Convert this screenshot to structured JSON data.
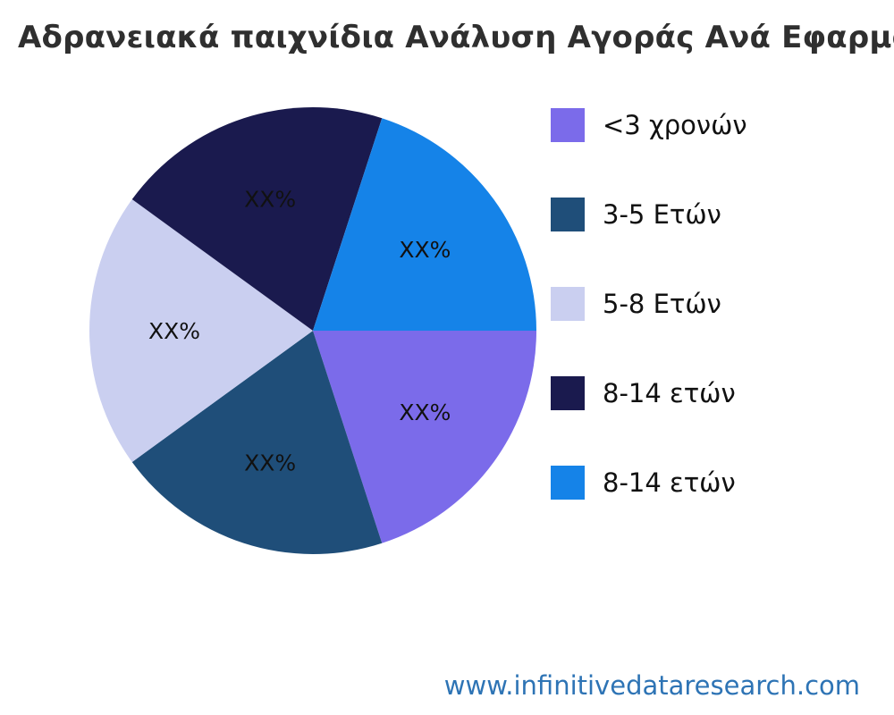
{
  "title": "Αδρανειακά παιχνίδια Ανάλυση Αγοράς Ανά Εφαρμογή",
  "footer": {
    "url": "www.infinitivedataresearch.com",
    "link_color": "#2e74b5"
  },
  "chart_data": {
    "type": "pie",
    "title": "Αδρανειακά παιχνίδια Ανάλυση Αγοράς Ανά Εφαρμογή",
    "legend_position": "right",
    "start_angle_deg": 0,
    "direction": "clockwise",
    "label_distance": 0.62,
    "slices": [
      {
        "label": "<3 χρονών",
        "value": 20,
        "value_label": "XX%",
        "color": "#7b6bea"
      },
      {
        "label": "3-5 Ετών",
        "value": 20,
        "value_label": "XX%",
        "color": "#1f4e79"
      },
      {
        "label": "5-8 Ετών",
        "value": 20,
        "value_label": "XX%",
        "color": "#cacff0"
      },
      {
        "label": "8-14 ετών",
        "value": 20,
        "value_label": "XX%",
        "color": "#1a1a4e"
      },
      {
        "label": "8-14 ετών",
        "value": 20,
        "value_label": "XX%",
        "color": "#1583e8"
      }
    ]
  }
}
